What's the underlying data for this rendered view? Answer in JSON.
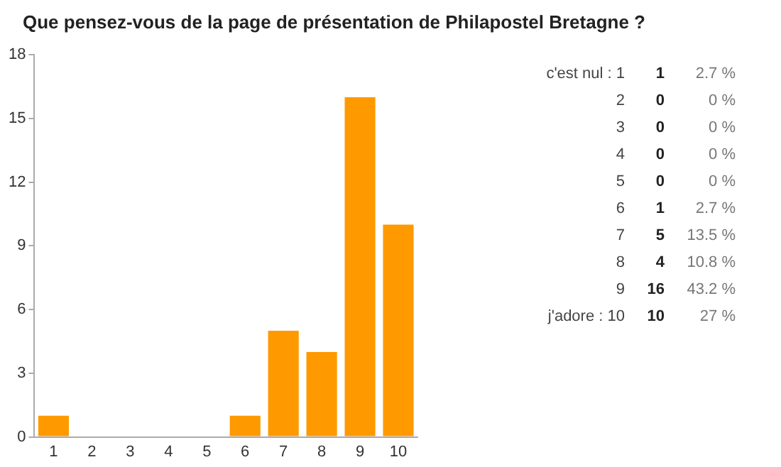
{
  "chart_data": {
    "type": "bar",
    "title": "Que pensez-vous de la page de présentation de Philapostel Bretagne ?",
    "categories": [
      "1",
      "2",
      "3",
      "4",
      "5",
      "6",
      "7",
      "8",
      "9",
      "10"
    ],
    "values": [
      1,
      0,
      0,
      0,
      0,
      1,
      5,
      4,
      16,
      10
    ],
    "color": "#ff9900",
    "ylim": [
      0,
      18
    ],
    "yticks": [
      0,
      3,
      6,
      9,
      12,
      15,
      18
    ],
    "grid": false,
    "legend": false,
    "annotations": [
      "c'est nul : 1",
      "1",
      "2.7 %",
      "2",
      "0",
      "0 %",
      "3",
      "0",
      "0 %",
      "4",
      "0",
      "0 %",
      "5",
      "0",
      "0 %",
      "6",
      "1",
      "2.7 %",
      "7",
      "5",
      "13.5 %",
      "8",
      "4",
      "10.8 %",
      "9",
      "16",
      "43.2 %",
      "j'adore : 10",
      "10",
      "27 %"
    ]
  }
}
